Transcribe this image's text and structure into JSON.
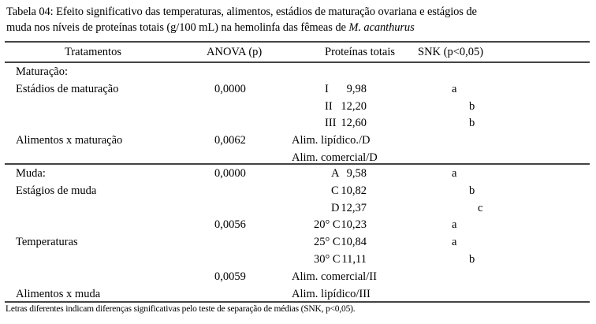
{
  "caption": {
    "line1": "Tabela 04: Efeito significativo das temperaturas, alimentos, estádios de maturação ovariana e estágios de",
    "line2_prefix": "muda nos níveis de proteínas totais (g/100 mL) na hemolinfa das fêmeas de ",
    "line2_species": "M. acanthurus"
  },
  "headers": {
    "treatments": "Tratamentos",
    "anova": "ANOVA (p)",
    "proteins": "Proteínas totais",
    "snk": "SNK (p<0,05)"
  },
  "section1": [
    {
      "label": "Maturação:",
      "anova": "",
      "group": "",
      "value": "",
      "snk": ""
    },
    {
      "label": "Estádios de maturação",
      "anova": "0,0000",
      "group": "I",
      "value": "9,98",
      "snk": "a"
    },
    {
      "label": "",
      "anova": "",
      "group": "II",
      "value": "12,20",
      "snk": "b"
    },
    {
      "label": "",
      "anova": "",
      "group": "III",
      "value": "12,60",
      "snk": "b"
    },
    {
      "label": "Alimentos x maturação",
      "anova": "0,0062",
      "group": "Alim. lipídico./D",
      "value": "",
      "snk": ""
    },
    {
      "label": "",
      "anova": "",
      "group": "Alim. comercial/D",
      "value": "",
      "snk": ""
    }
  ],
  "section2": [
    {
      "label": "Muda:",
      "anova": "0,0000",
      "group": "A",
      "value": "9,58",
      "snk": "a"
    },
    {
      "label": "Estágios de muda",
      "anova": "",
      "group": "C",
      "value": "10,82",
      "snk": "b"
    },
    {
      "label": "",
      "anova": "",
      "group": "D",
      "value": "12,37",
      "snk": "c"
    },
    {
      "label": "",
      "anova": "0,0056",
      "group": "20° C",
      "value": "10,23",
      "snk": "a"
    },
    {
      "label": "Temperaturas",
      "anova": "",
      "group": "25° C",
      "value": "10,84",
      "snk": "a"
    },
    {
      "label": "",
      "anova": "",
      "group": "30° C",
      "value": "11,11",
      "snk": "b"
    },
    {
      "label": "",
      "anova": "0,0059",
      "group": "Alim. comercial/II",
      "value": "",
      "snk": ""
    },
    {
      "label": "Alimentos x muda",
      "anova": "",
      "group": "Alim. lipídico/III",
      "value": "",
      "snk": ""
    }
  ],
  "footnote": "Letras diferentes indicam diferenças significativas pelo teste de separação de médias (SNK, p<0,05)."
}
